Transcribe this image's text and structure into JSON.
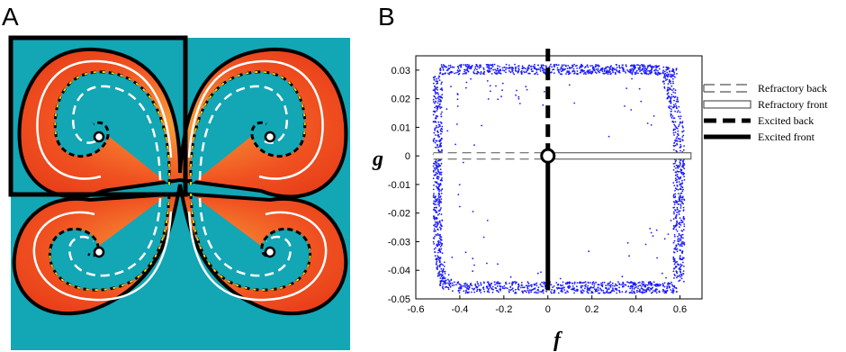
{
  "panels": {
    "a_label": "A",
    "b_label": "B"
  },
  "panel_a": {
    "colors": {
      "background": "#13a6b4",
      "excited_red": "#f05020",
      "excited_orange": "#f48a2a",
      "front": "#000000",
      "refractory_line": "#ffffff",
      "back_dash": "#ffd200"
    },
    "spiral_count": 4,
    "highlight_box": true
  },
  "chart_data": {
    "type": "scatter",
    "xlabel": "f",
    "ylabel": "g",
    "xlim": [
      -0.6,
      0.7
    ],
    "ylim": [
      -0.05,
      0.035
    ],
    "xticks": [
      "-0.6",
      "-0.4",
      "-0.2",
      "0",
      "0.2",
      "0.4",
      "0.6"
    ],
    "yticks": [
      "0.03",
      "0.02",
      "0.01",
      "0",
      "-0.01",
      "-0.02",
      "-0.03",
      "-0.04",
      "-0.05"
    ],
    "grid": false,
    "legend_position": "top-right",
    "point_color": "#1a1aff",
    "cycle_boundary": {
      "f_min": -0.52,
      "f_max": 0.62,
      "g_min": -0.048,
      "g_max": 0.032
    },
    "series": [
      {
        "name": "Refractory back",
        "style": "dashed-hollow",
        "from": [
          -0.52,
          0
        ],
        "to": [
          0,
          0
        ]
      },
      {
        "name": "Refractory front",
        "style": "solid-hollow",
        "from": [
          0,
          0
        ],
        "to": [
          0.65,
          0
        ]
      },
      {
        "name": "Excited back",
        "style": "dashed-thick",
        "from": [
          0,
          0
        ],
        "to": [
          0,
          0.035
        ]
      },
      {
        "name": "Excited front",
        "style": "solid-thick",
        "from": [
          0,
          0
        ],
        "to": [
          0,
          -0.047
        ]
      }
    ],
    "singular_point": [
      0,
      0
    ]
  }
}
